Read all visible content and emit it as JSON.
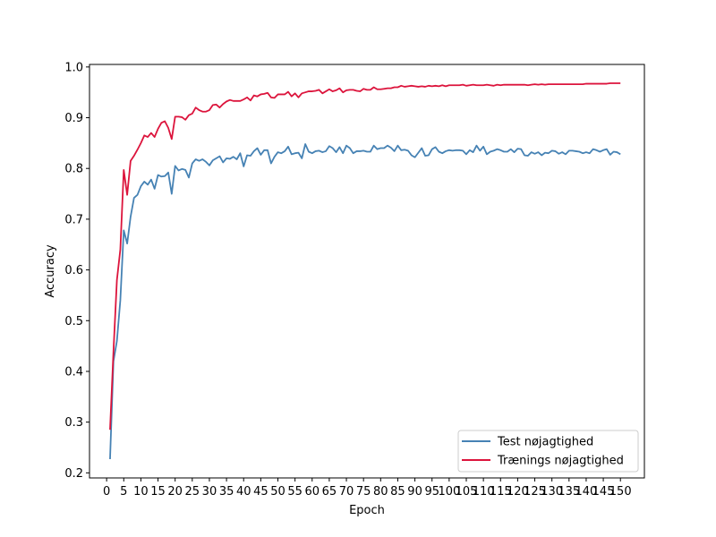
{
  "chart_data": {
    "type": "line",
    "title": "",
    "xlabel": "Epoch",
    "ylabel": "Accuracy",
    "xlim": [
      -5.0,
      157.0
    ],
    "ylim": [
      0.19,
      1.005
    ],
    "x_ticks": [
      0,
      5,
      10,
      15,
      20,
      25,
      30,
      35,
      40,
      45,
      50,
      55,
      60,
      65,
      70,
      75,
      80,
      85,
      90,
      95,
      100,
      105,
      110,
      115,
      120,
      125,
      130,
      135,
      140,
      145,
      150
    ],
    "y_ticks": [
      0.2,
      0.3,
      0.4,
      0.5,
      0.6,
      0.7,
      0.8,
      0.9,
      1.0
    ],
    "grid": false,
    "legend_position": "lower right",
    "series": [
      {
        "name": "Test nøjagtighed",
        "color": "#4682B4",
        "x": [
          1,
          2,
          3,
          4,
          5,
          6,
          7,
          8,
          9,
          10,
          11,
          12,
          13,
          14,
          15,
          16,
          17,
          18,
          19,
          20,
          21,
          22,
          23,
          24,
          25,
          26,
          27,
          28,
          29,
          30,
          31,
          32,
          33,
          34,
          35,
          36,
          37,
          38,
          39,
          40,
          41,
          42,
          43,
          44,
          45,
          46,
          47,
          48,
          49,
          50,
          51,
          52,
          53,
          54,
          55,
          56,
          57,
          58,
          59,
          60,
          61,
          62,
          63,
          64,
          65,
          66,
          67,
          68,
          69,
          70,
          71,
          72,
          73,
          74,
          75,
          76,
          77,
          78,
          79,
          80,
          81,
          82,
          83,
          84,
          85,
          86,
          87,
          88,
          89,
          90,
          91,
          92,
          93,
          94,
          95,
          96,
          97,
          98,
          99,
          100,
          101,
          102,
          103,
          104,
          105,
          106,
          107,
          108,
          109,
          110,
          111,
          112,
          113,
          114,
          115,
          116,
          117,
          118,
          119,
          120,
          121,
          122,
          123,
          124,
          125,
          126,
          127,
          128,
          129,
          130,
          131,
          132,
          133,
          134,
          135,
          136,
          137,
          138,
          139,
          140,
          141,
          142,
          143,
          144,
          145,
          146,
          147,
          148,
          149,
          150
        ],
        "values": [
          0.227,
          0.42,
          0.46,
          0.54,
          0.678,
          0.652,
          0.705,
          0.742,
          0.748,
          0.765,
          0.774,
          0.768,
          0.778,
          0.76,
          0.787,
          0.784,
          0.785,
          0.792,
          0.75,
          0.805,
          0.796,
          0.799,
          0.797,
          0.782,
          0.81,
          0.818,
          0.815,
          0.818,
          0.813,
          0.806,
          0.816,
          0.82,
          0.824,
          0.812,
          0.82,
          0.819,
          0.823,
          0.818,
          0.83,
          0.804,
          0.826,
          0.825,
          0.834,
          0.84,
          0.827,
          0.836,
          0.836,
          0.81,
          0.823,
          0.832,
          0.83,
          0.834,
          0.843,
          0.828,
          0.83,
          0.831,
          0.82,
          0.848,
          0.833,
          0.83,
          0.834,
          0.835,
          0.832,
          0.834,
          0.844,
          0.84,
          0.832,
          0.842,
          0.83,
          0.845,
          0.84,
          0.83,
          0.834,
          0.834,
          0.835,
          0.833,
          0.833,
          0.845,
          0.838,
          0.84,
          0.84,
          0.845,
          0.841,
          0.834,
          0.845,
          0.836,
          0.837,
          0.835,
          0.826,
          0.822,
          0.831,
          0.84,
          0.825,
          0.826,
          0.838,
          0.842,
          0.833,
          0.83,
          0.834,
          0.836,
          0.835,
          0.836,
          0.836,
          0.835,
          0.828,
          0.836,
          0.832,
          0.845,
          0.835,
          0.843,
          0.828,
          0.833,
          0.835,
          0.838,
          0.836,
          0.833,
          0.833,
          0.838,
          0.832,
          0.839,
          0.838,
          0.826,
          0.825,
          0.832,
          0.829,
          0.832,
          0.826,
          0.831,
          0.83,
          0.835,
          0.834,
          0.829,
          0.832,
          0.828,
          0.835,
          0.835,
          0.834,
          0.833,
          0.83,
          0.832,
          0.83,
          0.838,
          0.836,
          0.833,
          0.836,
          0.838,
          0.827,
          0.833,
          0.832,
          0.828
        ]
      },
      {
        "name": "Trænings nøjagtighed",
        "color": "#DC143C",
        "x": [
          1,
          2,
          3,
          4,
          5,
          6,
          7,
          8,
          9,
          10,
          11,
          12,
          13,
          14,
          15,
          16,
          17,
          18,
          19,
          20,
          21,
          22,
          23,
          24,
          25,
          26,
          27,
          28,
          29,
          30,
          31,
          32,
          33,
          34,
          35,
          36,
          37,
          38,
          39,
          40,
          41,
          42,
          43,
          44,
          45,
          46,
          47,
          48,
          49,
          50,
          51,
          52,
          53,
          54,
          55,
          56,
          57,
          58,
          59,
          60,
          61,
          62,
          63,
          64,
          65,
          66,
          67,
          68,
          69,
          70,
          71,
          72,
          73,
          74,
          75,
          76,
          77,
          78,
          79,
          80,
          81,
          82,
          83,
          84,
          85,
          86,
          87,
          88,
          89,
          90,
          91,
          92,
          93,
          94,
          95,
          96,
          97,
          98,
          99,
          100,
          101,
          102,
          103,
          104,
          105,
          106,
          107,
          108,
          109,
          110,
          111,
          112,
          113,
          114,
          115,
          116,
          117,
          118,
          119,
          120,
          121,
          122,
          123,
          124,
          125,
          126,
          127,
          128,
          129,
          130,
          131,
          132,
          133,
          134,
          135,
          136,
          137,
          138,
          139,
          140,
          141,
          142,
          143,
          144,
          145,
          146,
          147,
          148,
          149,
          150
        ],
        "values": [
          0.285,
          0.44,
          0.58,
          0.64,
          0.797,
          0.748,
          0.815,
          0.825,
          0.837,
          0.85,
          0.865,
          0.862,
          0.87,
          0.862,
          0.878,
          0.89,
          0.893,
          0.88,
          0.858,
          0.902,
          0.902,
          0.901,
          0.896,
          0.905,
          0.908,
          0.92,
          0.915,
          0.912,
          0.912,
          0.915,
          0.925,
          0.926,
          0.92,
          0.927,
          0.932,
          0.935,
          0.933,
          0.933,
          0.933,
          0.936,
          0.94,
          0.934,
          0.944,
          0.942,
          0.946,
          0.947,
          0.949,
          0.94,
          0.939,
          0.946,
          0.946,
          0.946,
          0.951,
          0.942,
          0.948,
          0.94,
          0.948,
          0.95,
          0.952,
          0.952,
          0.953,
          0.955,
          0.948,
          0.952,
          0.956,
          0.952,
          0.954,
          0.958,
          0.95,
          0.954,
          0.955,
          0.955,
          0.953,
          0.952,
          0.957,
          0.955,
          0.955,
          0.96,
          0.956,
          0.956,
          0.957,
          0.958,
          0.958,
          0.96,
          0.96,
          0.963,
          0.961,
          0.962,
          0.963,
          0.962,
          0.961,
          0.962,
          0.961,
          0.963,
          0.962,
          0.963,
          0.962,
          0.964,
          0.962,
          0.964,
          0.964,
          0.964,
          0.964,
          0.965,
          0.963,
          0.964,
          0.965,
          0.964,
          0.964,
          0.964,
          0.965,
          0.964,
          0.963,
          0.965,
          0.964,
          0.965,
          0.965,
          0.965,
          0.965,
          0.965,
          0.965,
          0.965,
          0.964,
          0.965,
          0.966,
          0.965,
          0.966,
          0.965,
          0.966,
          0.966,
          0.966,
          0.966,
          0.966,
          0.966,
          0.966,
          0.966,
          0.966,
          0.966,
          0.966,
          0.967,
          0.967,
          0.967,
          0.967,
          0.967,
          0.967,
          0.967,
          0.968,
          0.968,
          0.968,
          0.968
        ]
      }
    ]
  }
}
